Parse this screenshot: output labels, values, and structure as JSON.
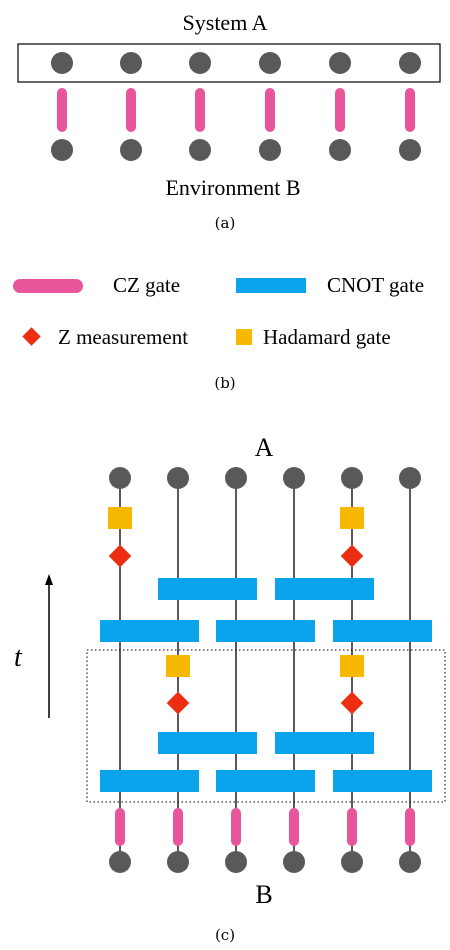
{
  "panel_a": {
    "system_label": "System A",
    "environment_label": "Environment B",
    "caption": "(a)"
  },
  "panel_b": {
    "cz_label": "CZ gate",
    "cnot_label": "CNOT gate",
    "z_label": "Z measurement",
    "hadamard_label": "Hadamard gate",
    "caption": "(b)"
  },
  "panel_c": {
    "top_label": "A",
    "bottom_label": "B",
    "time_label": "t",
    "caption": "(c)"
  },
  "colors": {
    "qubit": "#595959",
    "cz": "#e9559a",
    "cnot": "#0aa4ec",
    "z_measure": "#ec2f12",
    "hadamard": "#f6b800",
    "line": "#000000"
  }
}
